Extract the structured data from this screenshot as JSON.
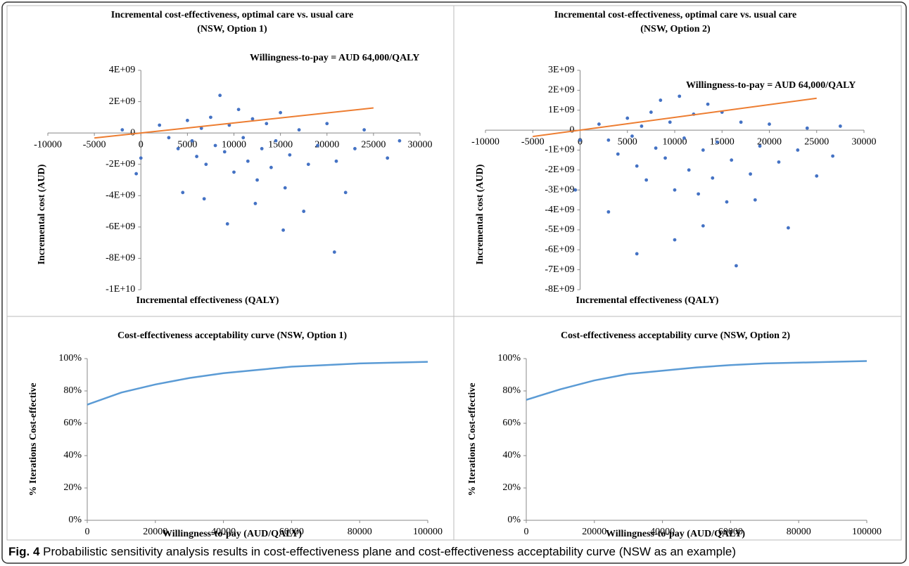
{
  "chart_data": [
    {
      "type": "scatter",
      "title": "Incremental cost-effectiveness, optimal care vs. usual care",
      "subtitle": "(NSW, Option 1)",
      "x_label": "Incremental effectiveness (QALY)",
      "y_label": "Incremental cost (AUD)",
      "annotation": "Willingness-to-pay = AUD 64,000/QALY",
      "color": "#4472c4",
      "xlim": [
        -10000,
        30000
      ],
      "xticks": [
        -10000,
        -5000,
        0,
        5000,
        10000,
        15000,
        20000,
        25000,
        30000
      ],
      "ylim": [
        -10000000000.0,
        4000000000.0
      ],
      "yticks": [
        {
          "value": 4000000000.0,
          "label": "4E+09"
        },
        {
          "value": 2000000000.0,
          "label": "2E+09"
        },
        0,
        {
          "value": -2000000000.0,
          "label": "-2E+09"
        },
        {
          "value": -4000000000.0,
          "label": "-4E+09"
        },
        {
          "value": -6000000000.0,
          "label": "-6E+09"
        },
        {
          "value": -8000000000.0,
          "label": "-8E+09"
        },
        {
          "value": -10000000000.0,
          "label": "-1E+10"
        }
      ],
      "x": [
        2000,
        3000,
        4000,
        5000,
        5500,
        6000,
        6500,
        7000,
        7500,
        8000,
        8500,
        9000,
        9500,
        10000,
        10500,
        11000,
        11500,
        12000,
        12500,
        13000,
        13500,
        14000,
        14500,
        15000,
        15500,
        16000,
        17000,
        18000,
        19000,
        20000,
        21000,
        22000,
        23000,
        24000,
        26500,
        20800,
        15300,
        9300,
        4500,
        0,
        -500,
        -2000,
        12300,
        17500,
        6800,
        27800
      ],
      "values": [
        500000000.0,
        -300000000.0,
        -1000000000.0,
        800000000.0,
        -500000000.0,
        -1500000000.0,
        300000000.0,
        -2000000000.0,
        1000000000.0,
        -800000000.0,
        2400000000.0,
        -1200000000.0,
        500000000.0,
        -2500000000.0,
        1500000000.0,
        -300000000.0,
        -1800000000.0,
        900000000.0,
        -3000000000.0,
        -1000000000.0,
        600000000.0,
        -2200000000.0,
        -500000000.0,
        1300000000.0,
        -3500000000.0,
        -1400000000.0,
        200000000.0,
        -2000000000.0,
        -800000000.0,
        600000000.0,
        -1800000000.0,
        -3800000000.0,
        -1000000000.0,
        200000000.0,
        -1600000000.0,
        -7600000000.0,
        -6200000000.0,
        -5800000000.0,
        -3800000000.0,
        -1600000000.0,
        -2600000000.0,
        200000000.0,
        -4500000000.0,
        -5000000000.0,
        -4200000000.0,
        -500000000.0
      ],
      "wtp_line": {
        "x": [
          -5000,
          25000
        ],
        "values": [
          -320000000.0,
          1600000000.0
        ],
        "color": "#ed7d31"
      }
    },
    {
      "type": "scatter",
      "title": "Incremental cost-effectiveness, optimal care vs. usual care",
      "subtitle": "(NSW, Option 2)",
      "x_label": "Incremental effectiveness (QALY)",
      "y_label": "Incremental cost (AUD)",
      "annotation": "Willingness-to-pay = AUD 64,000/QALY",
      "color": "#4472c4",
      "xlim": [
        -10000,
        30000
      ],
      "xticks": [
        -10000,
        -5000,
        0,
        5000,
        10000,
        15000,
        20000,
        25000,
        30000
      ],
      "ylim": [
        -8000000000.0,
        3000000000.0
      ],
      "yticks": [
        {
          "value": 3000000000.0,
          "label": "3E+09"
        },
        {
          "value": 2000000000.0,
          "label": "2E+09"
        },
        {
          "value": 1000000000.0,
          "label": "1E+09"
        },
        0,
        {
          "value": -1000000000.0,
          "label": "-1E+09"
        },
        {
          "value": -2000000000.0,
          "label": "-2E+09"
        },
        {
          "value": -3000000000.0,
          "label": "-3E+09"
        },
        {
          "value": -4000000000.0,
          "label": "-4E+09"
        },
        {
          "value": -5000000000.0,
          "label": "-5E+09"
        },
        {
          "value": -6000000000.0,
          "label": "-6E+09"
        },
        {
          "value": -7000000000.0,
          "label": "-7E+09"
        },
        {
          "value": -8000000000.0,
          "label": "-8E+09"
        }
      ],
      "x": [
        2000,
        3000,
        4000,
        5000,
        5500,
        6000,
        6500,
        7000,
        7500,
        8000,
        8500,
        9000,
        9500,
        10000,
        10500,
        11000,
        11500,
        12000,
        12500,
        13000,
        13500,
        14000,
        14500,
        15000,
        15500,
        16000,
        17000,
        18000,
        19000,
        20000,
        21000,
        22000,
        23000,
        24000,
        25000,
        16500,
        6000,
        10000,
        3000,
        0,
        -500,
        13000,
        18500,
        26700,
        27500
      ],
      "values": [
        300000000.0,
        -500000000.0,
        -1200000000.0,
        600000000.0,
        -300000000.0,
        -1800000000.0,
        200000000.0,
        -2500000000.0,
        900000000.0,
        -900000000.0,
        1500000000.0,
        -1400000000.0,
        400000000.0,
        -3000000000.0,
        1700000000.0,
        -400000000.0,
        -2000000000.0,
        800000000.0,
        -3200000000.0,
        -1000000000.0,
        1300000000.0,
        -2400000000.0,
        -600000000.0,
        900000000.0,
        -3600000000.0,
        -1500000000.0,
        400000000.0,
        -2200000000.0,
        -800000000.0,
        300000000.0,
        -1600000000.0,
        -4900000000.0,
        -1000000000.0,
        100000000.0,
        -2300000000.0,
        -6800000000.0,
        -6200000000.0,
        -5500000000.0,
        -4100000000.0,
        -500000000.0,
        -3000000000.0,
        -4800000000.0,
        -3500000000.0,
        -1300000000.0,
        200000000.0
      ],
      "wtp_line": {
        "x": [
          -5000,
          25000
        ],
        "values": [
          -320000000.0,
          1600000000.0
        ],
        "color": "#ed7d31"
      }
    },
    {
      "type": "line",
      "title": "Cost-effectiveness acceptability curve (NSW, Option 1)",
      "x_label": "Willingness-to-pay (AUD/QALY)",
      "y_label": "% Iterations Cost-effective",
      "color": "#5b9bd5",
      "xlim": [
        0,
        100000
      ],
      "xticks": [
        0,
        20000,
        40000,
        60000,
        80000,
        100000
      ],
      "ylim": [
        0,
        100
      ],
      "yticks": [
        {
          "value": 0,
          "label": "0%"
        },
        {
          "value": 20,
          "label": "20%"
        },
        {
          "value": 40,
          "label": "40%"
        },
        {
          "value": 60,
          "label": "60%"
        },
        {
          "value": 80,
          "label": "80%"
        },
        {
          "value": 100,
          "label": "100%"
        }
      ],
      "x": [
        0,
        10000,
        20000,
        30000,
        40000,
        50000,
        60000,
        70000,
        80000,
        90000,
        100000
      ],
      "values": [
        71.5,
        79,
        84,
        88,
        91,
        93,
        95,
        96,
        97,
        97.5,
        98
      ]
    },
    {
      "type": "line",
      "title": "Cost-effectiveness acceptability curve (NSW, Option 2)",
      "x_label": "Willingness-to-pay (AUD/QALY)",
      "y_label": "% Iterations Cost-effective",
      "color": "#5b9bd5",
      "xlim": [
        0,
        100000
      ],
      "xticks": [
        0,
        20000,
        40000,
        60000,
        80000,
        100000
      ],
      "ylim": [
        0,
        100
      ],
      "yticks": [
        {
          "value": 0,
          "label": "0%"
        },
        {
          "value": 20,
          "label": "20%"
        },
        {
          "value": 40,
          "label": "40%"
        },
        {
          "value": 60,
          "label": "60%"
        },
        {
          "value": 80,
          "label": "80%"
        },
        {
          "value": 100,
          "label": "100%"
        }
      ],
      "x": [
        0,
        10000,
        20000,
        30000,
        40000,
        50000,
        60000,
        70000,
        80000,
        90000,
        100000
      ],
      "values": [
        74.5,
        81,
        86.5,
        90.5,
        92.5,
        94.5,
        96,
        97,
        97.5,
        98,
        98.5
      ]
    }
  ],
  "caption": {
    "label": "Fig. 4",
    "text": "Probabilistic sensitivity analysis results in cost-effectiveness plane and cost-effectiveness acceptability curve (NSW as an example)"
  }
}
